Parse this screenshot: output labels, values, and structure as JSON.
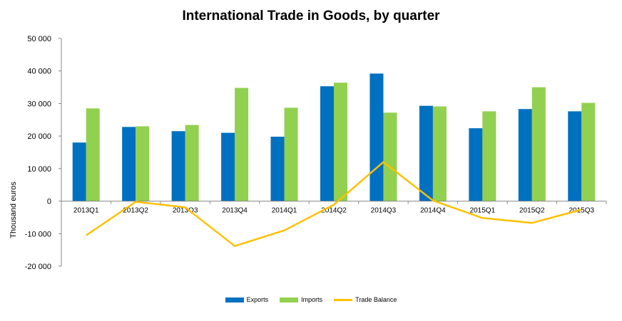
{
  "chart_data": {
    "type": "bar",
    "title": "International Trade in Goods, by quarter",
    "ylabel": "Thousand euros",
    "xlabel": "",
    "ylim": [
      -20000,
      50000
    ],
    "yticks": [
      50000,
      40000,
      30000,
      20000,
      10000,
      0,
      -10000,
      -20000
    ],
    "ytick_labels": [
      "50 000",
      "40 000",
      "30 000",
      "20 000",
      "10 000",
      "0",
      "-10 000",
      "-20 000"
    ],
    "categories": [
      "2013Q1",
      "2013Q2",
      "2013Q3",
      "2013Q4",
      "2014Q1",
      "2014Q2",
      "2014Q3",
      "2014Q4",
      "2015Q1",
      "2015Q2",
      "2015Q3"
    ],
    "series": [
      {
        "name": "Exports",
        "type": "bar",
        "color": "#0070C0",
        "values": [
          18000,
          22800,
          21500,
          21000,
          19800,
          35300,
          39200,
          29300,
          22400,
          28300,
          27600
        ]
      },
      {
        "name": "Imports",
        "type": "bar",
        "color": "#92D050",
        "values": [
          28500,
          23000,
          23400,
          34800,
          28700,
          36400,
          27200,
          29100,
          27600,
          35000,
          30200
        ]
      },
      {
        "name": "Trade Balance",
        "type": "line",
        "color": "#FFC000",
        "values": [
          -10500,
          -200,
          -1900,
          -13800,
          -9000,
          -1100,
          12000,
          200,
          -5200,
          -6700,
          -2600
        ]
      }
    ],
    "grid": false,
    "legend_position": "bottom-center"
  }
}
